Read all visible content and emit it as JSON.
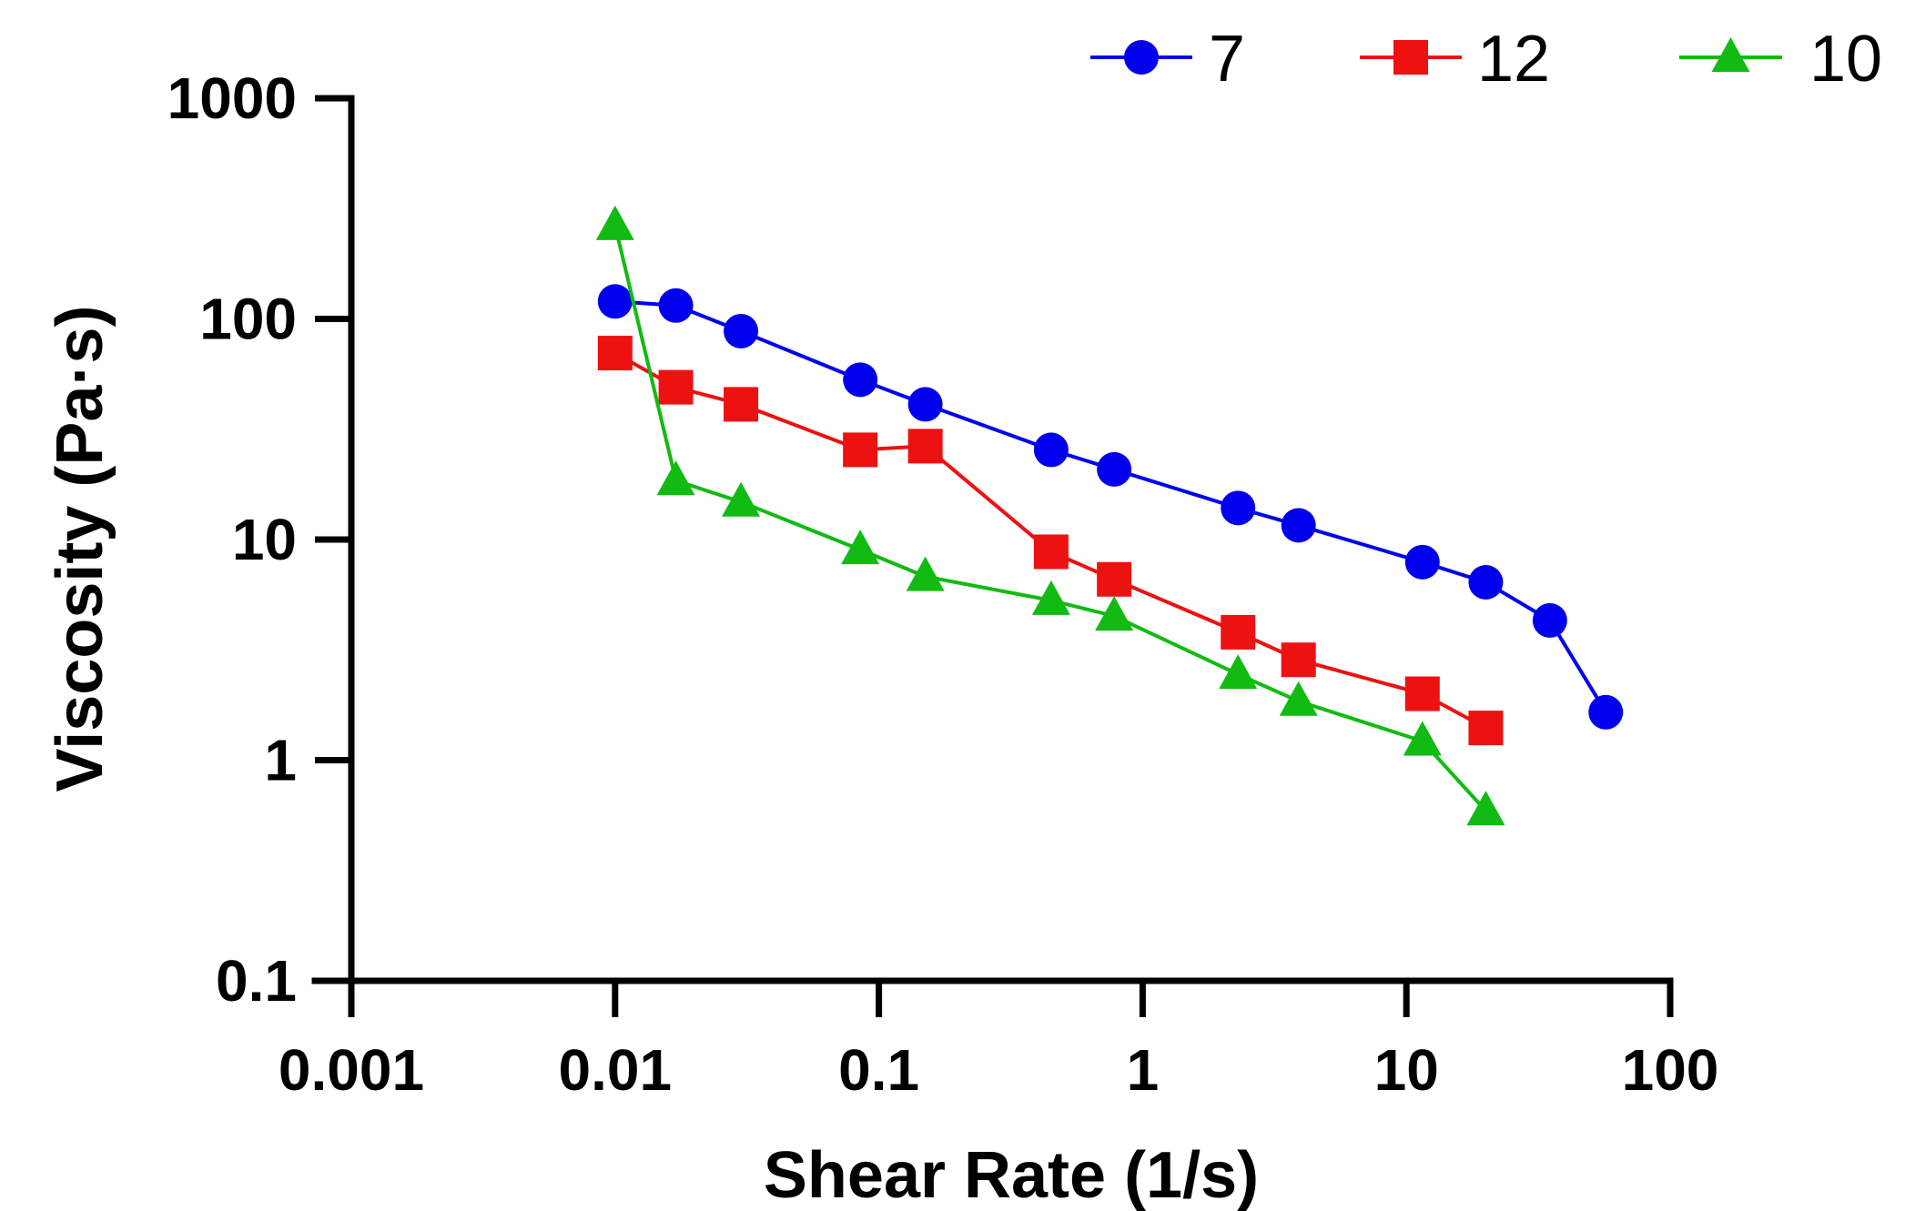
{
  "chart_data": {
    "type": "line",
    "xlabel": "Shear Rate (1/s)",
    "ylabel": "Viscosity (Pa·s)",
    "x_scale": "log",
    "y_scale": "log",
    "xlim": [
      0.001,
      100
    ],
    "ylim": [
      0.1,
      1000
    ],
    "x_ticks": [
      {
        "value": 0.001,
        "label": "0.001"
      },
      {
        "value": 0.01,
        "label": "0.01"
      },
      {
        "value": 0.1,
        "label": "0.1"
      },
      {
        "value": 1,
        "label": "1"
      },
      {
        "value": 10,
        "label": "10"
      },
      {
        "value": 100,
        "label": "100"
      }
    ],
    "y_ticks": [
      {
        "value": 0.1,
        "label": "0.1"
      },
      {
        "value": 1,
        "label": "1"
      },
      {
        "value": 10,
        "label": "10"
      },
      {
        "value": 100,
        "label": "100"
      },
      {
        "value": 1000,
        "label": "1000"
      }
    ],
    "grid": false,
    "legend_position": "top",
    "series": [
      {
        "name": "7",
        "color": "#0000ee",
        "marker": "circle",
        "points": [
          [
            0.01,
            120
          ],
          [
            0.017,
            115
          ],
          [
            0.03,
            88
          ],
          [
            0.085,
            53
          ],
          [
            0.15,
            41
          ],
          [
            0.45,
            25.5
          ],
          [
            0.78,
            20.8
          ],
          [
            2.3,
            13.9
          ],
          [
            3.9,
            11.6
          ],
          [
            11.5,
            7.9
          ],
          [
            20,
            6.4
          ],
          [
            35,
            4.3
          ],
          [
            57,
            1.65
          ]
        ]
      },
      {
        "name": "12",
        "color": "#ee1111",
        "marker": "square",
        "points": [
          [
            0.01,
            70
          ],
          [
            0.017,
            49
          ],
          [
            0.03,
            41
          ],
          [
            0.085,
            25.5
          ],
          [
            0.15,
            26.5
          ],
          [
            0.45,
            8.8
          ],
          [
            0.78,
            6.6
          ],
          [
            2.3,
            3.8
          ],
          [
            3.9,
            2.85
          ],
          [
            11.5,
            2.0
          ],
          [
            20,
            1.4
          ]
        ]
      },
      {
        "name": "10",
        "color": "#11bb11",
        "marker": "triangle",
        "points": [
          [
            0.01,
            265
          ],
          [
            0.017,
            18.5
          ],
          [
            0.03,
            14.8
          ],
          [
            0.085,
            9.0
          ],
          [
            0.15,
            6.8
          ],
          [
            0.45,
            5.3
          ],
          [
            0.78,
            4.5
          ],
          [
            2.3,
            2.45
          ],
          [
            3.9,
            1.85
          ],
          [
            11.5,
            1.22
          ],
          [
            20,
            0.59
          ]
        ]
      }
    ]
  }
}
